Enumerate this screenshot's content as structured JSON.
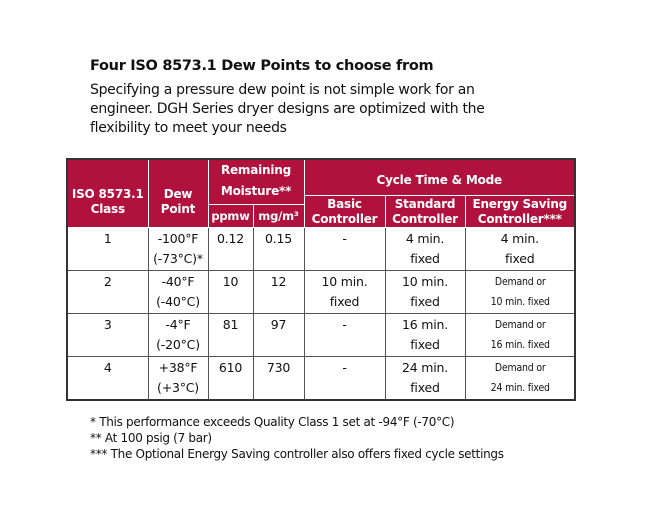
{
  "title": "Four ISO 8573.1 Dew Points to choose from",
  "intro": "Specifying a pressure dew point is not simple work for an engineer. DGH Series dryer designs are optimized with the flexibility to meet your needs",
  "colors": {
    "header_bg": "#b0123d",
    "header_text": "#ffffff"
  },
  "table": {
    "headers": {
      "class": [
        "ISO 8573.1",
        "Class"
      ],
      "dew_point": [
        "Dew",
        "Point"
      ],
      "moisture": [
        "Remaining",
        "Moisture**"
      ],
      "ppmw": "ppmw",
      "mgm3": "mg/m³",
      "cycle": "Cycle Time & Mode",
      "basic": [
        "Basic",
        "Controller"
      ],
      "standard": [
        "Standard",
        "Controller"
      ],
      "energy": [
        "Energy Saving",
        "Controller***"
      ]
    },
    "rows": [
      {
        "class": "1",
        "dew": [
          "-100°F",
          "(-73°C)*"
        ],
        "ppmw": "0.12",
        "mgm3": "0.15",
        "basic": [
          "-",
          ""
        ],
        "standard": [
          "4 min.",
          "fixed"
        ],
        "energy": [
          "4 min.",
          "fixed"
        ]
      },
      {
        "class": "2",
        "dew": [
          "-40°F",
          "(-40°C)"
        ],
        "ppmw": "10",
        "mgm3": "12",
        "basic": [
          "10 min.",
          "fixed"
        ],
        "standard": [
          "10 min.",
          "fixed"
        ],
        "energy": [
          "Demand or",
          "10 min. fixed"
        ]
      },
      {
        "class": "3",
        "dew": [
          "-4°F",
          "(-20°C)"
        ],
        "ppmw": "81",
        "mgm3": "97",
        "basic": [
          "-",
          ""
        ],
        "standard": [
          "16 min.",
          "fixed"
        ],
        "energy": [
          "Demand or",
          "16 min. fixed"
        ]
      },
      {
        "class": "4",
        "dew": [
          "+38°F",
          "(+3°C)"
        ],
        "ppmw": "610",
        "mgm3": "730",
        "basic": [
          "-",
          ""
        ],
        "standard": [
          "24 min.",
          "fixed"
        ],
        "energy": [
          "Demand or",
          "24 min. fixed"
        ]
      }
    ]
  },
  "footnotes": [
    "* This performance exceeds Quality Class 1 set at -94°F (-70°C)",
    "** At 100 psig (7 bar)",
    "*** The Optional Energy Saving controller also offers fixed cycle settings"
  ]
}
